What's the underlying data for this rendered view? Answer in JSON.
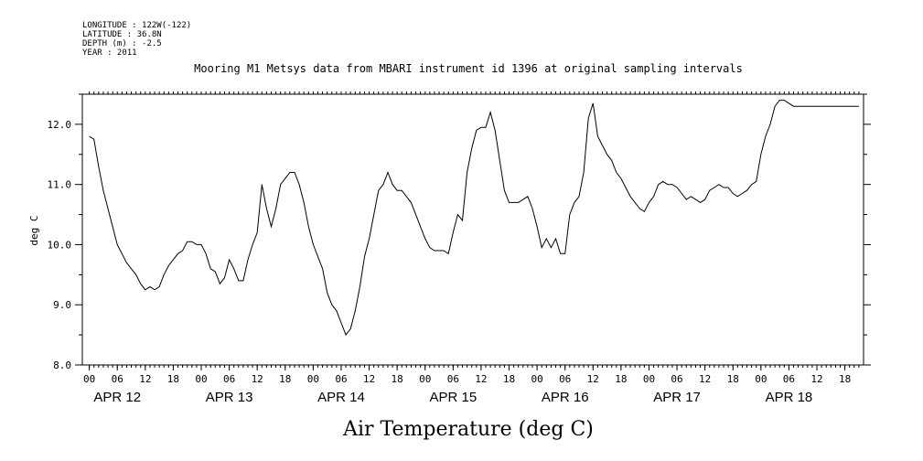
{
  "header": {
    "longitude": "LONGITUDE : 122W(-122)",
    "latitude": "LATITUDE : 36.8N",
    "depth": "DEPTH (m) : -2.5",
    "year": "YEAR : 2011"
  },
  "chart_data": {
    "type": "line",
    "title": "Mooring M1 Metsys data from MBARI instrument id 1396 at original sampling intervals",
    "xlabel": "Air Temperature (deg C)",
    "ylabel": "deg C",
    "ylim": [
      8.0,
      12.5
    ],
    "y_ticks": [
      "8.0",
      "9.0",
      "10.0",
      "11.0",
      "12.0"
    ],
    "xlim_hours": [
      -1.5,
      166
    ],
    "hour_tick_labels": [
      "00",
      "06",
      "12",
      "18",
      "00",
      "06",
      "12",
      "18",
      "00",
      "06",
      "12",
      "18",
      "00",
      "06",
      "12",
      "18",
      "00",
      "06",
      "12",
      "18",
      "00",
      "06",
      "12",
      "18",
      "00",
      "06",
      "12",
      "18"
    ],
    "day_labels": [
      "APR 12",
      "APR 13",
      "APR 14",
      "APR 15",
      "APR 16",
      "APR 17",
      "APR 18"
    ],
    "grid": false,
    "series": [
      {
        "x": [
          0,
          1,
          2,
          3,
          4,
          5,
          6,
          7,
          8,
          9,
          10,
          11,
          12,
          13,
          14,
          15,
          16,
          17,
          18,
          19,
          20,
          21,
          22,
          23,
          24,
          25,
          26,
          27,
          28,
          29,
          30,
          31,
          32,
          33,
          34,
          35,
          36,
          37,
          38,
          39,
          40,
          41,
          42,
          43,
          44,
          45,
          46,
          47,
          48,
          49,
          50,
          51,
          52,
          53,
          54,
          55,
          56,
          57,
          58,
          59,
          60,
          61,
          62,
          63,
          64,
          65,
          66,
          67,
          68,
          69,
          70,
          71,
          72,
          73,
          74,
          75,
          76,
          77,
          78,
          79,
          80,
          81,
          82,
          83,
          84,
          85,
          86,
          87,
          88,
          89,
          90,
          91,
          92,
          93,
          94,
          95,
          96,
          97,
          98,
          99,
          100,
          101,
          102,
          103,
          104,
          105,
          106,
          107,
          108,
          109,
          110,
          111,
          112,
          113,
          114,
          115,
          116,
          117,
          118,
          119,
          120,
          121,
          122,
          123,
          124,
          125,
          126,
          127,
          128,
          129,
          130,
          131,
          132,
          133,
          134,
          135,
          136,
          137,
          138,
          139,
          140,
          141,
          142,
          143,
          144,
          145,
          146,
          147,
          148,
          149,
          150,
          151,
          152,
          153,
          154,
          155,
          156,
          157,
          158,
          159,
          160,
          161,
          162,
          163,
          164,
          165
        ],
        "y": [
          11.8,
          11.75,
          11.3,
          10.9,
          10.6,
          10.3,
          10.0,
          9.85,
          9.7,
          9.6,
          9.5,
          9.35,
          9.25,
          9.3,
          9.25,
          9.3,
          9.5,
          9.65,
          9.75,
          9.85,
          9.9,
          10.05,
          10.05,
          10.0,
          10.0,
          9.85,
          9.6,
          9.55,
          9.35,
          9.45,
          9.75,
          9.6,
          9.4,
          9.4,
          9.75,
          10.0,
          10.2,
          11.0,
          10.6,
          10.3,
          10.6,
          11.0,
          11.1,
          11.2,
          11.2,
          11.0,
          10.7,
          10.3,
          10.0,
          9.8,
          9.6,
          9.2,
          9.0,
          8.9,
          8.7,
          8.5,
          8.6,
          8.9,
          9.3,
          9.8,
          10.1,
          10.5,
          10.9,
          11.0,
          11.2,
          11.0,
          10.9,
          10.9,
          10.8,
          10.7,
          10.5,
          10.3,
          10.1,
          9.95,
          9.9,
          9.9,
          9.9,
          9.85,
          10.2,
          10.5,
          10.4,
          11.2,
          11.6,
          11.9,
          11.95,
          11.95,
          12.2,
          11.9,
          11.4,
          10.9,
          10.7,
          10.7,
          10.7,
          10.75,
          10.8,
          10.6,
          10.3,
          9.95,
          10.1,
          9.95,
          10.1,
          9.85,
          9.85,
          10.5,
          10.7,
          10.8,
          11.2,
          12.1,
          12.35,
          11.8,
          11.65,
          11.5,
          11.4,
          11.2,
          11.1,
          10.95,
          10.8,
          10.7,
          10.6,
          10.55,
          10.7,
          10.8,
          11.0,
          11.05,
          11.0,
          11.0,
          10.95,
          10.85,
          10.75,
          10.8,
          10.75,
          10.7,
          10.75,
          10.9,
          10.95,
          11.0,
          10.95,
          10.95,
          10.85,
          10.8,
          10.85,
          10.9,
          11.0,
          11.05,
          11.5,
          11.8,
          12.0,
          12.3,
          12.4,
          12.4,
          12.35,
          12.3,
          12.3,
          12.3,
          12.3,
          12.3,
          12.3,
          12.3,
          12.3,
          12.3,
          12.3,
          12.3,
          12.3,
          12.3,
          12.3,
          12.3
        ]
      }
    ]
  }
}
